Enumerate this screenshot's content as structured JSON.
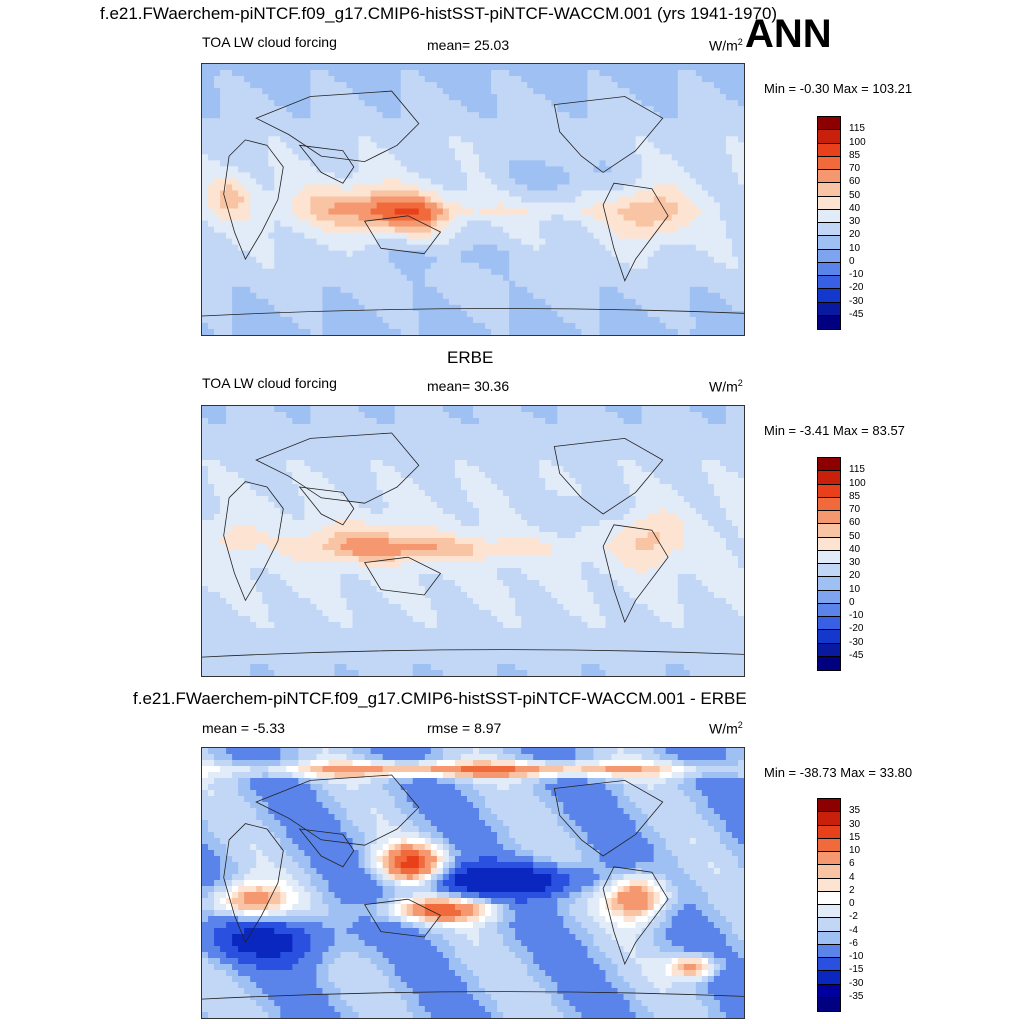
{
  "chart_data": [
    {
      "type": "heatmap",
      "case_title": "f.e21.FWaerchem-piNTCF.f09_g17.CMIP6-histSST-piNTCF-WACCM.001 (yrs 1941-1970)",
      "season": "ANN",
      "field_label": "TOA LW cloud forcing",
      "stat_text": "mean=  25.03",
      "mean": 25.03,
      "units": "W/m",
      "units_sup": "2",
      "range_text": "Min =  -0.30 Max = 103.21",
      "min": -0.3,
      "max": 103.21,
      "colorbar_levels": [
        "115",
        "100",
        "85",
        "70",
        "60",
        "50",
        "40",
        "30",
        "20",
        "10",
        "0",
        "-10",
        "-20",
        "-30",
        "-45"
      ],
      "colorbar_colors": [
        "#8c0000",
        "#c8200a",
        "#e8401a",
        "#f06a3c",
        "#f59870",
        "#f9c4a4",
        "#fde4d2",
        "#e2ecf8",
        "#c2d6f6",
        "#9fc0f3",
        "#7ea4ef",
        "#5a84ea",
        "#3760e4",
        "#1438cc",
        "#0a1aa0",
        "#000080"
      ]
    },
    {
      "type": "heatmap",
      "panel_title": "ERBE",
      "field_label": "TOA LW cloud forcing",
      "stat_text": "mean=  30.36",
      "mean": 30.36,
      "units": "W/m",
      "units_sup": "2",
      "range_text": "Min =  -3.41 Max =  83.57",
      "min": -3.41,
      "max": 83.57,
      "colorbar_levels": [
        "115",
        "100",
        "85",
        "70",
        "60",
        "50",
        "40",
        "30",
        "20",
        "10",
        "0",
        "-10",
        "-20",
        "-30",
        "-45"
      ],
      "colorbar_colors": [
        "#8c0000",
        "#c8200a",
        "#e8401a",
        "#f06a3c",
        "#f59870",
        "#f9c4a4",
        "#fde4d2",
        "#e2ecf8",
        "#c2d6f6",
        "#9fc0f3",
        "#7ea4ef",
        "#5a84ea",
        "#3760e4",
        "#1438cc",
        "#0a1aa0",
        "#000080"
      ]
    },
    {
      "type": "heatmap",
      "panel_title": "f.e21.FWaerchem-piNTCF.f09_g17.CMIP6-histSST-piNTCF-WACCM.001 - ERBE",
      "stat_text": "mean =  -5.33",
      "mean": -5.33,
      "rmse_text": "rmse =   8.97",
      "rmse": 8.97,
      "units": "W/m",
      "units_sup": "2",
      "range_text": "Min = -38.73 Max =  33.80",
      "min": -38.73,
      "max": 33.8,
      "colorbar_levels": [
        "35",
        "30",
        "15",
        "10",
        "6",
        "4",
        "2",
        "0",
        "-2",
        "-4",
        "-6",
        "-10",
        "-15",
        "-30",
        "-35"
      ],
      "colorbar_colors": [
        "#8c0000",
        "#c8200a",
        "#e8401a",
        "#f06a3c",
        "#f59870",
        "#f9c4a4",
        "#fde4d2",
        "#ffffff",
        "#e2ecf8",
        "#c2d6f6",
        "#9fc0f3",
        "#5a84ea",
        "#2a50e0",
        "#0a28c0",
        "#0000a0",
        "#000080"
      ]
    }
  ]
}
